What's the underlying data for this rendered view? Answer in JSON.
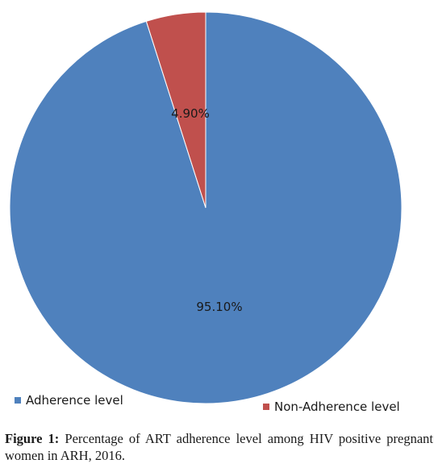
{
  "chart_data": {
    "type": "pie",
    "title": "",
    "slices": [
      {
        "label": "Adherence level",
        "value": 95.1,
        "display": "95.10%",
        "color": "#4f81bd"
      },
      {
        "label": "Non-Adherence level",
        "value": 4.9,
        "display": "4.90%",
        "color": "#c0504d"
      }
    ],
    "legend_position": "bottom",
    "start_angle_deg": 0,
    "direction": "clockwise"
  },
  "caption": {
    "label": "Figure 1:",
    "text": " Percentage of ART adherence level among HIV positive pregnant women in ARH, 2016."
  }
}
